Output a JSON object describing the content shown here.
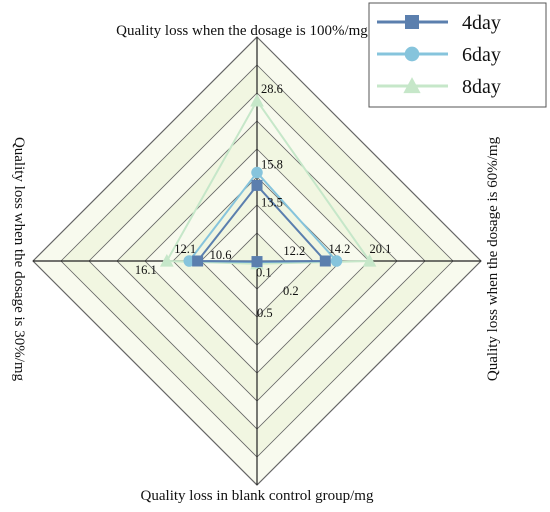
{
  "chart_data": {
    "type": "radar",
    "axes": [
      "Quality loss when the dosage is 100%/mg",
      "Quality loss when the dosage is 60%/mg",
      "Quality loss in blank control group/mg",
      "Quality loss when the dosage is 30%/mg"
    ],
    "range": [
      0,
      40
    ],
    "grid": true,
    "legend_position": "top-right",
    "series": [
      {
        "name": "4day",
        "values": [
          13.5,
          12.2,
          0.1,
          10.6
        ],
        "color": "#5b7fae",
        "marker": "square"
      },
      {
        "name": "6day",
        "values": [
          15.8,
          14.2,
          0.2,
          12.1
        ],
        "color": "#86c4dc",
        "marker": "circle"
      },
      {
        "name": "8day",
        "values": [
          28.6,
          20.1,
          0.5,
          16.1
        ],
        "color": "#c6e7c9",
        "marker": "triangle"
      }
    ]
  }
}
